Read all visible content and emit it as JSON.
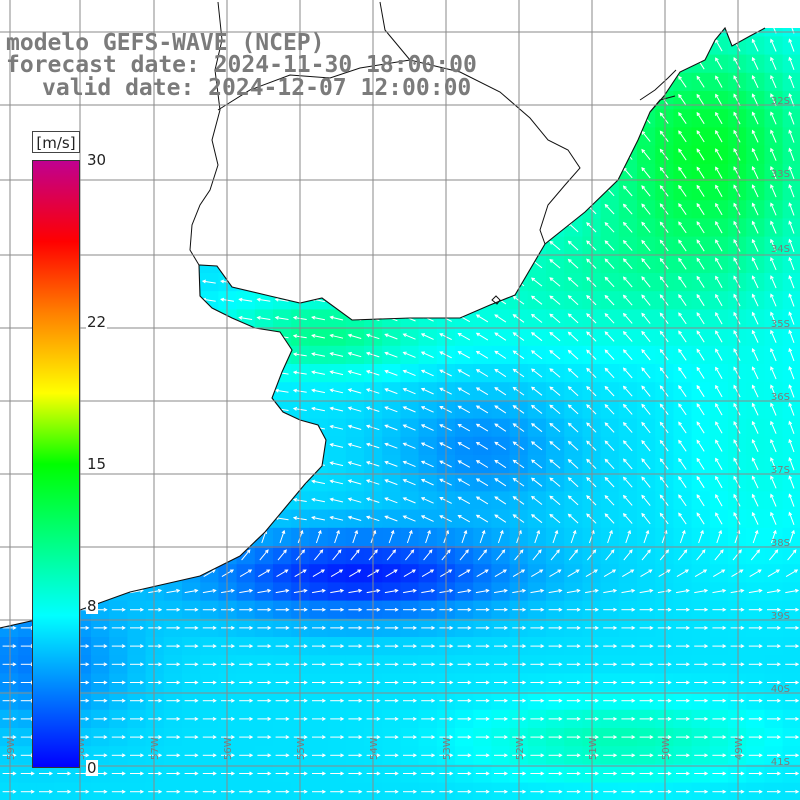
{
  "title": {
    "line1": "modelo GEFS-WAVE (NCEP)",
    "line2": "forecast date: 2024-11-30 18:00:00",
    "line3": "valid date: 2024-12-07 12:00:00"
  },
  "legend": {
    "unit": "[m/s]",
    "min": 0,
    "max": 30,
    "ticks": [
      {
        "label": "30",
        "value": 30
      },
      {
        "label": "22",
        "value": 22
      },
      {
        "label": "15",
        "value": 15
      },
      {
        "label": "8",
        "value": 8
      },
      {
        "label": "0",
        "value": 0
      }
    ],
    "gradient": [
      {
        "value": 0,
        "color": "#0000ff"
      },
      {
        "value": 7.5,
        "color": "#00ffff"
      },
      {
        "value": 15,
        "color": "#00ff00"
      },
      {
        "value": 18.5,
        "color": "#ffff00"
      },
      {
        "value": 22.5,
        "color": "#ff7f00"
      },
      {
        "value": 26,
        "color": "#ff0000"
      },
      {
        "value": 30,
        "color": "#c00090"
      }
    ]
  },
  "latitude_labels": [
    "32S",
    "33S",
    "34S",
    "35S",
    "36S",
    "37S",
    "38S",
    "39S",
    "40S",
    "41S"
  ],
  "longitude_labels": [
    "59W",
    "58W",
    "57W",
    "56W",
    "55W",
    "54W",
    "53W",
    "52W",
    "51W",
    "50W",
    "49W"
  ],
  "map_style": {
    "ocean_default": "#18c8ee",
    "land": "#ffffff",
    "grid_line": "#8a8a8a",
    "coast_line": "#111111",
    "arrow": "#ffffff",
    "label_gray": "#7b7b7b"
  }
}
